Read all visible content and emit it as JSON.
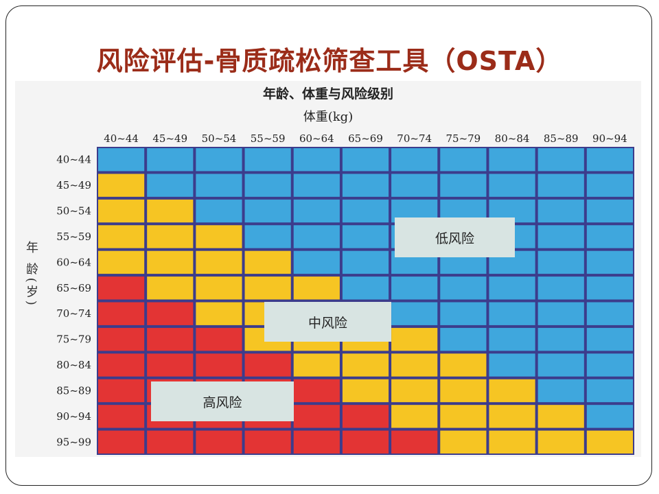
{
  "slide": {
    "title": "风险评估-骨质疏松筛查工具（OSTA）"
  },
  "chart_data": {
    "type": "heatmap",
    "title": "年龄、体重与风险级别",
    "xlabel": "体重(kg)",
    "ylabel": "年 龄(岁)",
    "x_categories": [
      "40~44",
      "45~49",
      "50~54",
      "55~59",
      "60~64",
      "65~69",
      "70~74",
      "75~79",
      "80~84",
      "85~89",
      "90~94"
    ],
    "y_categories": [
      "40~44",
      "45~49",
      "50~54",
      "55~59",
      "60~64",
      "65~69",
      "70~74",
      "75~79",
      "80~84",
      "85~89",
      "90~94",
      "95~99"
    ],
    "levels": {
      "low": "低风险",
      "mid": "中风险",
      "high": "高风险"
    },
    "level_colors": {
      "low": "#3fa7dd",
      "mid": "#f6c523",
      "high": "#e33434",
      "border": "#3c3c8c"
    },
    "values": [
      [
        "low",
        "low",
        "low",
        "low",
        "low",
        "low",
        "low",
        "low",
        "low",
        "low",
        "low"
      ],
      [
        "mid",
        "low",
        "low",
        "low",
        "low",
        "low",
        "low",
        "low",
        "low",
        "low",
        "low"
      ],
      [
        "mid",
        "mid",
        "low",
        "low",
        "low",
        "low",
        "low",
        "low",
        "low",
        "low",
        "low"
      ],
      [
        "mid",
        "mid",
        "mid",
        "low",
        "low",
        "low",
        "low",
        "low",
        "low",
        "low",
        "low"
      ],
      [
        "mid",
        "mid",
        "mid",
        "mid",
        "low",
        "low",
        "low",
        "low",
        "low",
        "low",
        "low"
      ],
      [
        "high",
        "mid",
        "mid",
        "mid",
        "mid",
        "low",
        "low",
        "low",
        "low",
        "low",
        "low"
      ],
      [
        "high",
        "high",
        "mid",
        "mid",
        "mid",
        "mid",
        "low",
        "low",
        "low",
        "low",
        "low"
      ],
      [
        "high",
        "high",
        "high",
        "mid",
        "mid",
        "mid",
        "mid",
        "low",
        "low",
        "low",
        "low"
      ],
      [
        "high",
        "high",
        "high",
        "high",
        "mid",
        "mid",
        "mid",
        "mid",
        "low",
        "low",
        "low"
      ],
      [
        "high",
        "high",
        "high",
        "high",
        "high",
        "mid",
        "mid",
        "mid",
        "mid",
        "low",
        "low"
      ],
      [
        "high",
        "high",
        "high",
        "high",
        "high",
        "high",
        "mid",
        "mid",
        "mid",
        "mid",
        "low"
      ],
      [
        "high",
        "high",
        "high",
        "high",
        "high",
        "high",
        "high",
        "mid",
        "mid",
        "mid",
        "mid"
      ]
    ]
  }
}
